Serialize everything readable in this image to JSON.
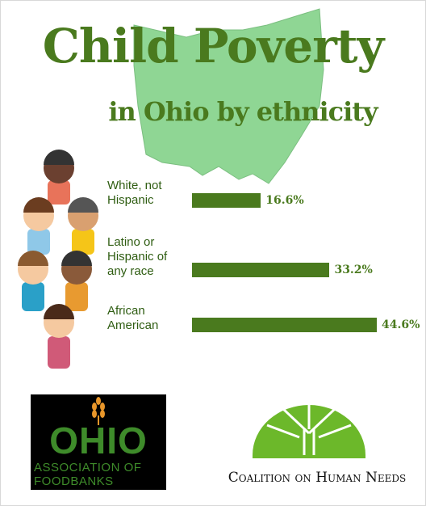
{
  "chart_data": {
    "type": "bar",
    "title": "Child Poverty",
    "subtitle": "in Ohio by ethnicity",
    "categories": [
      "White, not Hispanic",
      "Latino or Hispanic of any race",
      "African American"
    ],
    "values": [
      16.6,
      33.2,
      44.6
    ],
    "value_labels": [
      "16.6%",
      "33.2%",
      "44.6%"
    ],
    "color": "#4a7a1e"
  },
  "logos": {
    "foodbank": {
      "name": "OHIO",
      "lines": [
        "ASSOCIATION OF",
        "FOODBANKS"
      ]
    },
    "coalition": "Coalition on Human Needs"
  }
}
